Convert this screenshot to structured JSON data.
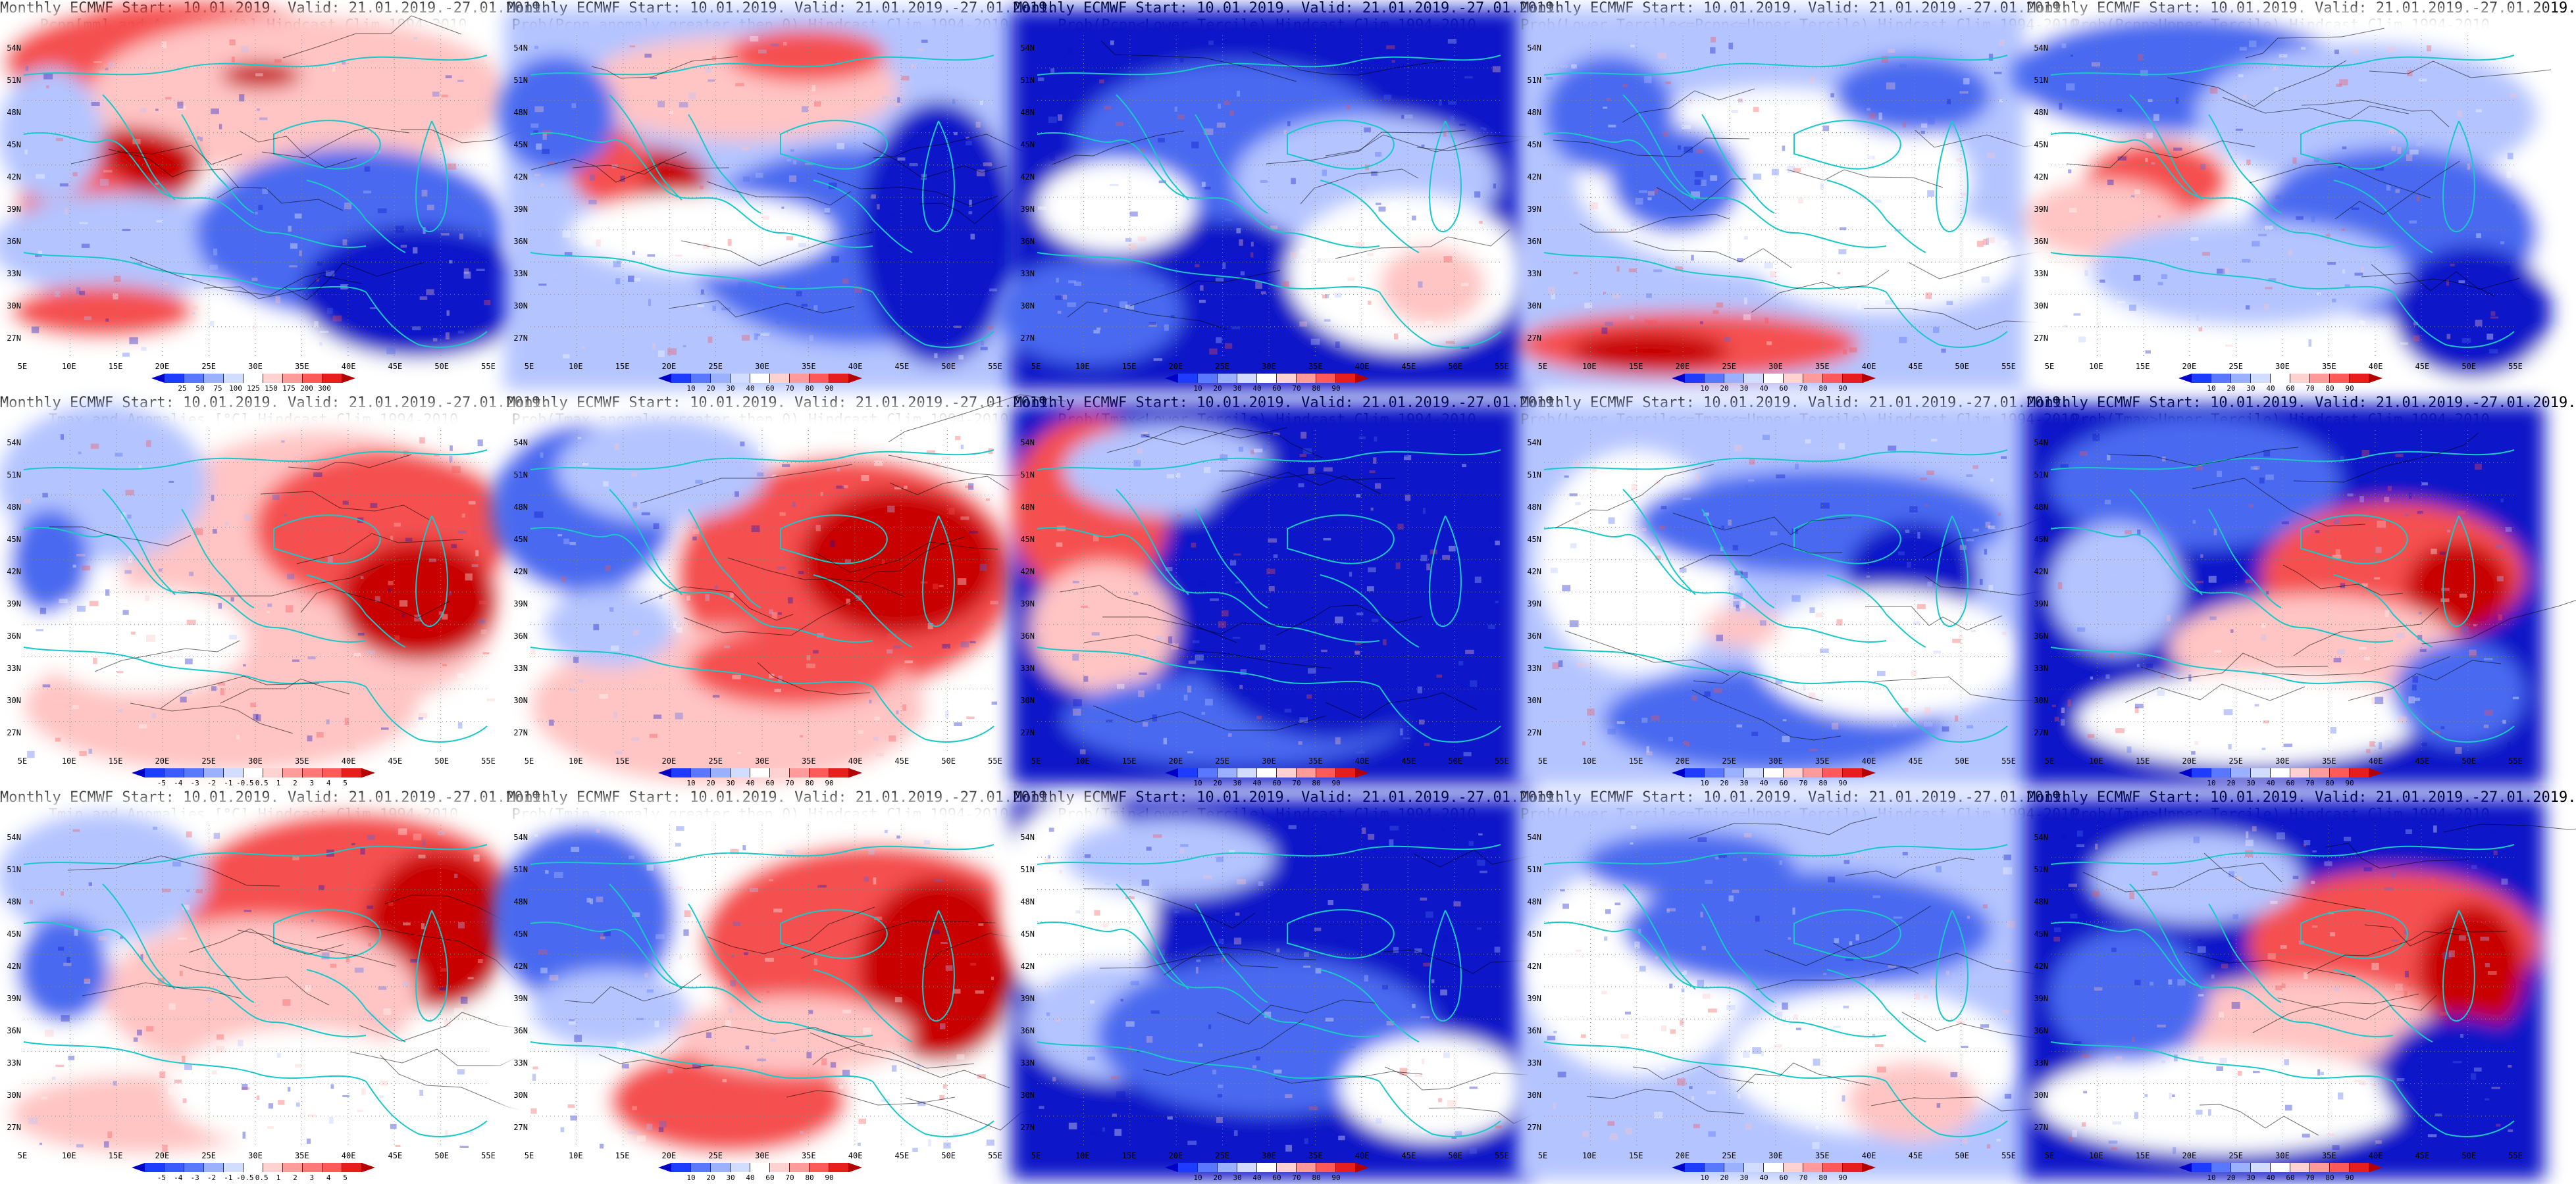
{
  "panels": [
    {
      "title": [
        "Monthly ECMWF Start: 10.01.2019. Valid: 21.01.2019.-27.01.2019.",
        "Pcpn[mm] and Anomalies[%] Hindcast Clim 1994-2010"
      ],
      "scale": "anom_pcpn",
      "pattern": "p1"
    },
    {
      "title": [
        "Monthly ECMWF Start: 10.01.2019. Valid: 21.01.2019.-27.01.2019.",
        "Prob(Pcpn anomaly greater then 0) Hindcast Clim 1994-2010"
      ],
      "scale": "prob",
      "pattern": "p2"
    },
    {
      "title": [
        "Monthly ECMWF Start: 10.01.2019. Valid: 21.01.2019.-27.01.2019.",
        "Prob(Pcpn<Lower Tercile) Hindcast Clim 1994-2010"
      ],
      "scale": "prob",
      "pattern": "p3"
    },
    {
      "title": [
        "Monthly ECMWF Start: 10.01.2019. Valid: 21.01.2019.-27.01.2019.",
        "Prob(Lower Tercile<=Pcpn<=Upper Tercile) Hindcast Clim 1994-2010"
      ],
      "scale": "prob",
      "pattern": "p4"
    },
    {
      "title": [
        "Monthly ECMWF Start: 10.01.2019. Valid: 21.01.2019.-27.01.2019.",
        "Prob(Pcpn>Upper Tercile) Hindcast Clim 1994-2010"
      ],
      "scale": "prob",
      "pattern": "p5"
    },
    {
      "title": [
        "Monthly ECMWF Start: 10.01.2019. Valid: 21.01.2019.-27.01.2019.",
        "Tmax and Anomalies [°C] Hindcast Clim 1994-2010"
      ],
      "scale": "anom_t",
      "pattern": "t1"
    },
    {
      "title": [
        "Monthly ECMWF Start: 10.01.2019. Valid: 21.01.2019.-27.01.2019.",
        "Prob(Tmax anomaly greater then 0) Hindcast Clim 1994-2010"
      ],
      "scale": "prob",
      "pattern": "t2"
    },
    {
      "title": [
        "Monthly ECMWF Start: 10.01.2019. Valid: 21.01.2019.-27.01.2019.",
        "Prob(Tmax<Lower Tercile) Hindcast Clim 1994-2010"
      ],
      "scale": "prob",
      "pattern": "t3"
    },
    {
      "title": [
        "Monthly ECMWF Start: 10.01.2019. Valid: 21.01.2019.-27.01.2019.",
        "Prob(Lower Tercile<=Tmax<=Upper Tercile) Hindcast Clim 1994-2010"
      ],
      "scale": "prob",
      "pattern": "t4"
    },
    {
      "title": [
        "Monthly ECMWF Start: 10.01.2019. Valid: 21.01.2019.-27.01.2019.",
        "Prob(Tmax>Upper Tercile) Hindcast Clim 1994-2010"
      ],
      "scale": "prob",
      "pattern": "t5"
    },
    {
      "title": [
        "Monthly ECMWF Start: 10.01.2019. Valid: 21.01.2019.-27.01.2019.",
        "Tmin and Anomalies [°C] Hindcast Clim 1994-2010"
      ],
      "scale": "anom_t",
      "pattern": "n1"
    },
    {
      "title": [
        "Monthly ECMWF Start: 10.01.2019. Valid: 21.01.2019.-27.01.2019.",
        "Prob(Tmin anomaly greater then 0) Hindcast Clim 1994-2010"
      ],
      "scale": "prob",
      "pattern": "n2"
    },
    {
      "title": [
        "Monthly ECMWF Start: 10.01.2019. Valid: 21.01.2019.-27.01.2019.",
        "Prob(Tmin<Lower Tercile) Hindcast Clim 1994-2010"
      ],
      "scale": "prob",
      "pattern": "n3"
    },
    {
      "title": [
        "Monthly ECMWF Start: 10.01.2019. Valid: 21.01.2019.-27.01.2019.",
        "Prob(Lower Tercile<=Tmin<=Upper Tercile) Hindcast Clim 1994-2010"
      ],
      "scale": "prob",
      "pattern": "n4"
    },
    {
      "title": [
        "Monthly ECMWF Start: 10.01.2019. Valid: 21.01.2019.-27.01.2019.",
        "Prob(Tmin>Upper Tercile) Hindcast Clim 1994-2010"
      ],
      "scale": "prob",
      "pattern": "n5"
    }
  ],
  "axes": {
    "lat_labels": [
      "54N",
      "51N",
      "48N",
      "45N",
      "42N",
      "39N",
      "36N",
      "33N",
      "30N",
      "27N"
    ],
    "lon_labels": [
      "5E",
      "10E",
      "15E",
      "20E",
      "25E",
      "30E",
      "35E",
      "40E",
      "45E",
      "50E",
      "55E"
    ]
  },
  "scales": {
    "prob": {
      "labels": [
        "10",
        "20",
        "30",
        "40",
        "60",
        "70",
        "80",
        "90"
      ],
      "colors": [
        "#0000c8",
        "#1e3cff",
        "#5a78ff",
        "#9bb0ff",
        "#d2dcff",
        "#ffffff",
        "#ffd2d2",
        "#ff9b9b",
        "#ff5a5a",
        "#e61e1e",
        "#b40000"
      ]
    },
    "anom_pcpn": {
      "labels": [
        "25",
        "50",
        "75",
        "100",
        "125",
        "150",
        "175",
        "200",
        "300"
      ],
      "colors": [
        "#0000c8",
        "#1e3cff",
        "#5a78ff",
        "#9bb0ff",
        "#d2dcff",
        "#ffffff",
        "#ffd2d2",
        "#ff9b9b",
        "#ff5a5a",
        "#e61e1e",
        "#b40000"
      ]
    },
    "anom_t": {
      "labels": [
        "-5",
        "-4",
        "-3",
        "-2",
        "-1",
        "-0.5",
        "0.5",
        "1",
        "2",
        "3",
        "4",
        "5"
      ],
      "colors": [
        "#0000c8",
        "#1e3cff",
        "#3c5aff",
        "#5a78ff",
        "#9bb0ff",
        "#d2dcff",
        "#ffffff",
        "#ffd2d2",
        "#ff9b9b",
        "#ff7878",
        "#ff5a5a",
        "#e61e1e",
        "#b40000"
      ]
    }
  },
  "colors": {
    "coast": "#19c8c8",
    "contour": "#000000",
    "deep_blue": "#0a14c8",
    "mid_blue": "#4a6af0",
    "light_blue": "#b4c4ff",
    "white": "#ffffff",
    "light_red": "#ffc4c4",
    "mid_red": "#f55050",
    "deep_red": "#c80000"
  }
}
